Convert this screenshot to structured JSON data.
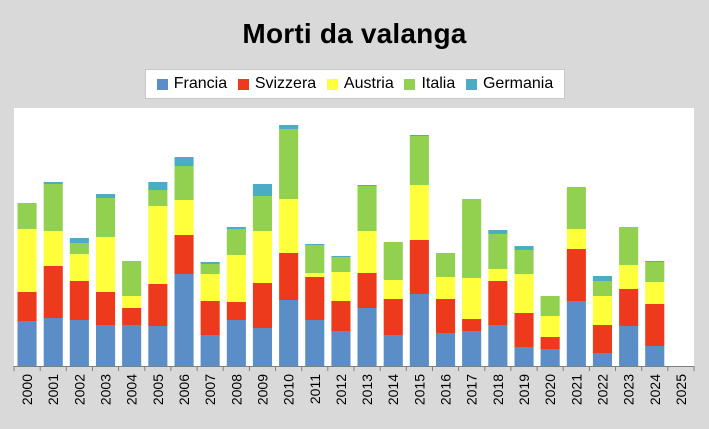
{
  "colors": {
    "Francia": "#5b8ec6",
    "Svizzera": "#ee3a1c",
    "Austria": "#ffff3c",
    "Italia": "#92d050",
    "Germania": "#4bacc6"
  },
  "chart_data": {
    "type": "bar",
    "stacked": true,
    "title": "Morti da valanga",
    "xlabel": "",
    "ylabel": "",
    "legend_position": "top",
    "grid": false,
    "ylim": [
      0,
      250
    ],
    "categories": [
      "2000",
      "2001",
      "2002",
      "2003",
      "2004",
      "2005",
      "2006",
      "2007",
      "2008",
      "2009",
      "2010",
      "2011",
      "2012",
      "2013",
      "2014",
      "2015",
      "2016",
      "2017",
      "2018",
      "2019",
      "2020",
      "2021",
      "2022",
      "2023",
      "2024",
      "2025"
    ],
    "series": [
      {
        "name": "Francia",
        "values": [
          45,
          48,
          46,
          41,
          41,
          40,
          92,
          31,
          46,
          38,
          66,
          46,
          35,
          58,
          31,
          72,
          33,
          35,
          41,
          19,
          17,
          65,
          13,
          40,
          20,
          0
        ]
      },
      {
        "name": "Svizzera",
        "values": [
          29,
          52,
          39,
          33,
          17,
          42,
          39,
          34,
          18,
          45,
          47,
          43,
          30,
          35,
          36,
          54,
          34,
          12,
          44,
          34,
          12,
          52,
          28,
          37,
          42,
          0
        ]
      },
      {
        "name": "Austria",
        "values": [
          63,
          35,
          27,
          55,
          12,
          78,
          35,
          27,
          47,
          52,
          54,
          4,
          29,
          42,
          19,
          55,
          22,
          41,
          12,
          39,
          21,
          20,
          29,
          24,
          22,
          0
        ]
      },
      {
        "name": "Italia",
        "values": [
          26,
          47,
          11,
          39,
          35,
          16,
          34,
          10,
          26,
          35,
          70,
          28,
          15,
          45,
          38,
          49,
          24,
          79,
          35,
          24,
          20,
          42,
          15,
          38,
          20,
          0
        ]
      },
      {
        "name": "Germania",
        "values": [
          0,
          2,
          5,
          4,
          0,
          8,
          9,
          2,
          2,
          12,
          4,
          1,
          1,
          1,
          0,
          1,
          0,
          0,
          4,
          4,
          0,
          0,
          5,
          0,
          1,
          0
        ]
      }
    ]
  }
}
